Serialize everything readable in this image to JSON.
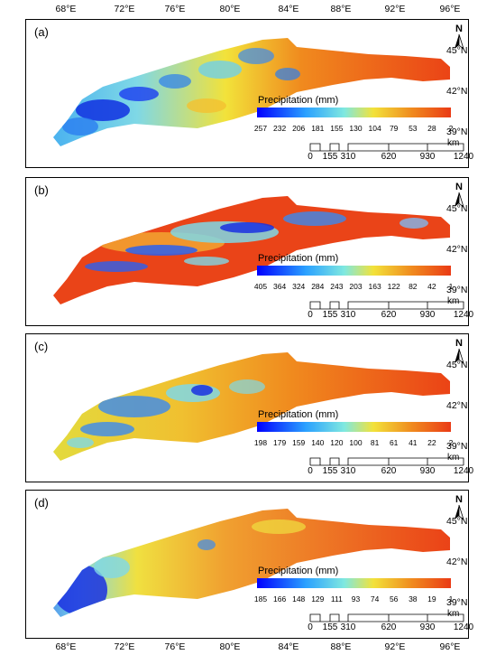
{
  "lon_labels": [
    "68°E",
    "72°E",
    "76°E",
    "80°E",
    "84°E",
    "88°E",
    "92°E",
    "96°E"
  ],
  "lat_labels": [
    "45°N",
    "42°N",
    "39°N"
  ],
  "north_label": "N",
  "legend_title": "Precipitation (mm)",
  "scale": {
    "ticks": [
      "0",
      "155",
      "310",
      "620",
      "930",
      "1240"
    ],
    "unit": "km"
  },
  "panels": [
    {
      "label": "(a)",
      "legend_values": [
        "257",
        "232",
        "206",
        "181",
        "155",
        "130",
        "104",
        "79",
        "53",
        "28",
        "2"
      ]
    },
    {
      "label": "(b)",
      "legend_values": [
        "405",
        "364",
        "324",
        "284",
        "243",
        "203",
        "163",
        "122",
        "82",
        "42",
        "1"
      ]
    },
    {
      "label": "(c)",
      "legend_values": [
        "198",
        "179",
        "159",
        "140",
        "120",
        "100",
        "81",
        "61",
        "41",
        "22",
        "2"
      ]
    },
    {
      "label": "(d)",
      "legend_values": [
        "185",
        "166",
        "148",
        "129",
        "111",
        "93",
        "74",
        "56",
        "38",
        "19",
        "1"
      ]
    }
  ],
  "colors": {
    "high": "#0000ff",
    "mid_blue": "#2aa0ff",
    "cyan": "#7fe0e0",
    "yellow": "#f2e23a",
    "orange": "#f08a1e",
    "low": "#ea3a15"
  }
}
